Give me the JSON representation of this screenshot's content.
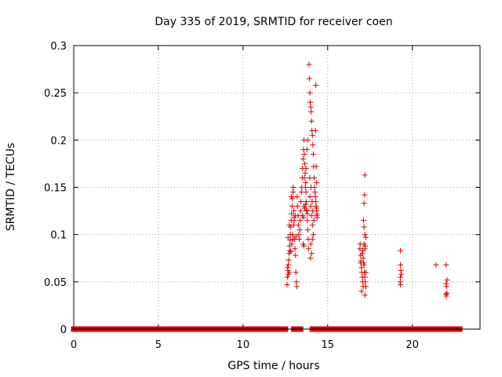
{
  "chart_data": {
    "type": "scatter",
    "title": "Day 335 of 2019, SRMTID for receiver coen",
    "xlabel": "GPS time / hours",
    "ylabel": "SRMTID / TECUs",
    "xlim": [
      0,
      24
    ],
    "ylim": [
      0,
      0.3
    ],
    "xticks": [
      0,
      5,
      10,
      15,
      20
    ],
    "yticks": [
      0,
      0.05,
      0.1,
      0.15,
      0.2,
      0.25,
      0.3
    ],
    "xtick_labels": [
      "0",
      "5",
      "10",
      "15",
      "20"
    ],
    "ytick_labels": [
      "0",
      "0.05",
      "0.1",
      "0.15",
      "0.2",
      "0.25",
      "0.3"
    ],
    "grid": true,
    "marker": "+",
    "color": "#dd0000",
    "series": [
      {
        "name": "SRMTID",
        "zero_ranges": [
          [
            0,
            12.5
          ],
          [
            13.0,
            13.4
          ],
          [
            14.1,
            14.3
          ],
          [
            14.4,
            17.0
          ],
          [
            17.2,
            21.9
          ],
          [
            22.1,
            22.8
          ]
        ],
        "points": [
          [
            12.6,
            0.047
          ],
          [
            12.62,
            0.055
          ],
          [
            12.65,
            0.062
          ],
          [
            12.67,
            0.068
          ],
          [
            12.7,
            0.073
          ],
          [
            12.72,
            0.08
          ],
          [
            12.75,
            0.088
          ],
          [
            12.78,
            0.094
          ],
          [
            12.8,
            0.1
          ],
          [
            12.82,
            0.108
          ],
          [
            12.85,
            0.115
          ],
          [
            12.87,
            0.122
          ],
          [
            12.9,
            0.13
          ],
          [
            12.92,
            0.138
          ],
          [
            12.95,
            0.145
          ],
          [
            12.97,
            0.15
          ],
          [
            13.0,
            0.125
          ],
          [
            13.02,
            0.115
          ],
          [
            13.05,
            0.095
          ],
          [
            13.07,
            0.085
          ],
          [
            13.1,
            0.078
          ],
          [
            13.12,
            0.06
          ],
          [
            13.15,
            0.05
          ],
          [
            13.17,
            0.045
          ],
          [
            12.63,
            0.065
          ],
          [
            12.68,
            0.058
          ],
          [
            12.73,
            0.06
          ],
          [
            12.77,
            0.083
          ],
          [
            12.83,
            0.082
          ],
          [
            12.88,
            0.09
          ],
          [
            12.93,
            0.1
          ],
          [
            12.98,
            0.11
          ],
          [
            13.03,
            0.118
          ],
          [
            13.08,
            0.12
          ],
          [
            13.13,
            0.098
          ],
          [
            12.66,
            0.097
          ],
          [
            12.74,
            0.11
          ],
          [
            12.86,
            0.14
          ],
          [
            12.96,
            0.095
          ],
          [
            13.2,
            0.14
          ],
          [
            13.22,
            0.13
          ],
          [
            13.25,
            0.12
          ],
          [
            13.27,
            0.11
          ],
          [
            13.3,
            0.1
          ],
          [
            13.32,
            0.095
          ],
          [
            13.35,
            0.105
          ],
          [
            13.37,
            0.115
          ],
          [
            13.4,
            0.125
          ],
          [
            13.42,
            0.135
          ],
          [
            13.45,
            0.145
          ],
          [
            13.47,
            0.15
          ],
          [
            13.5,
            0.16
          ],
          [
            13.52,
            0.17
          ],
          [
            13.55,
            0.18
          ],
          [
            13.57,
            0.19
          ],
          [
            13.6,
            0.2
          ],
          [
            13.62,
            0.185
          ],
          [
            13.65,
            0.175
          ],
          [
            13.67,
            0.165
          ],
          [
            13.7,
            0.155
          ],
          [
            13.72,
            0.145
          ],
          [
            13.75,
            0.135
          ],
          [
            13.77,
            0.125
          ],
          [
            13.8,
            0.115
          ],
          [
            13.82,
            0.105
          ],
          [
            13.85,
            0.095
          ],
          [
            13.87,
            0.085
          ],
          [
            13.6,
            0.13
          ],
          [
            13.65,
            0.128
          ],
          [
            13.7,
            0.132
          ],
          [
            13.75,
            0.126
          ],
          [
            13.8,
            0.122
          ],
          [
            13.55,
            0.09
          ],
          [
            13.6,
            0.088
          ],
          [
            13.52,
            0.12
          ],
          [
            13.58,
            0.118
          ],
          [
            13.62,
            0.16
          ],
          [
            13.68,
            0.15
          ],
          [
            13.72,
            0.17
          ],
          [
            13.78,
            0.19
          ],
          [
            13.82,
            0.2
          ],
          [
            13.9,
            0.28
          ],
          [
            13.92,
            0.265
          ],
          [
            13.95,
            0.25
          ],
          [
            13.97,
            0.24
          ],
          [
            14.0,
            0.235
          ],
          [
            14.02,
            0.23
          ],
          [
            14.05,
            0.22
          ],
          [
            14.07,
            0.21
          ],
          [
            14.1,
            0.205
          ],
          [
            14.12,
            0.195
          ],
          [
            14.15,
            0.185
          ],
          [
            14.17,
            0.172
          ],
          [
            14.2,
            0.16
          ],
          [
            14.22,
            0.15
          ],
          [
            14.25,
            0.145
          ],
          [
            14.27,
            0.14
          ],
          [
            14.3,
            0.135
          ],
          [
            14.32,
            0.13
          ],
          [
            14.35,
            0.125
          ],
          [
            14.37,
            0.12
          ],
          [
            14.38,
            0.118
          ],
          [
            14.3,
            0.258
          ],
          [
            14.28,
            0.21
          ],
          [
            14.32,
            0.172
          ],
          [
            14.35,
            0.155
          ],
          [
            14.34,
            0.128
          ],
          [
            14.36,
            0.122
          ],
          [
            13.95,
            0.14
          ],
          [
            14.0,
            0.13
          ],
          [
            14.05,
            0.12
          ],
          [
            14.1,
            0.11
          ],
          [
            14.15,
            0.1
          ],
          [
            14.0,
            0.09
          ],
          [
            13.98,
            0.075
          ],
          [
            14.05,
            0.08
          ],
          [
            14.1,
            0.095
          ],
          [
            13.94,
            0.16
          ],
          [
            14.02,
            0.15
          ],
          [
            14.08,
            0.135
          ],
          [
            14.12,
            0.125
          ],
          [
            14.18,
            0.115
          ],
          [
            16.9,
            0.085
          ],
          [
            16.92,
            0.09
          ],
          [
            16.95,
            0.078
          ],
          [
            16.97,
            0.072
          ],
          [
            17.0,
            0.065
          ],
          [
            17.02,
            0.06
          ],
          [
            17.05,
            0.055
          ],
          [
            17.07,
            0.05
          ],
          [
            17.1,
            0.045
          ],
          [
            17.0,
            0.04
          ],
          [
            16.95,
            0.07
          ],
          [
            17.05,
            0.08
          ],
          [
            17.08,
            0.083
          ],
          [
            17.1,
            0.075
          ],
          [
            17.12,
            0.07
          ],
          [
            17.15,
            0.068
          ],
          [
            17.17,
            0.06
          ],
          [
            17.2,
            0.055
          ],
          [
            17.22,
            0.05
          ],
          [
            17.25,
            0.045
          ],
          [
            17.2,
            0.036
          ],
          [
            17.15,
            0.09
          ],
          [
            17.2,
            0.085
          ],
          [
            17.25,
            0.06
          ],
          [
            17.2,
            0.163
          ],
          [
            17.18,
            0.142
          ],
          [
            17.15,
            0.133
          ],
          [
            17.12,
            0.115
          ],
          [
            17.15,
            0.108
          ],
          [
            17.2,
            0.1
          ],
          [
            17.25,
            0.097
          ],
          [
            17.22,
            0.088
          ],
          [
            19.3,
            0.083
          ],
          [
            19.3,
            0.068
          ],
          [
            19.32,
            0.062
          ],
          [
            19.35,
            0.058
          ],
          [
            19.3,
            0.055
          ],
          [
            19.28,
            0.05
          ],
          [
            19.3,
            0.047
          ],
          [
            21.4,
            0.068
          ],
          [
            22.0,
            0.068
          ],
          [
            22.05,
            0.052
          ],
          [
            22.0,
            0.048
          ],
          [
            22.02,
            0.045
          ],
          [
            22.05,
            0.038
          ],
          [
            22.0,
            0.035
          ],
          [
            21.98,
            0.037
          ]
        ]
      }
    ]
  }
}
